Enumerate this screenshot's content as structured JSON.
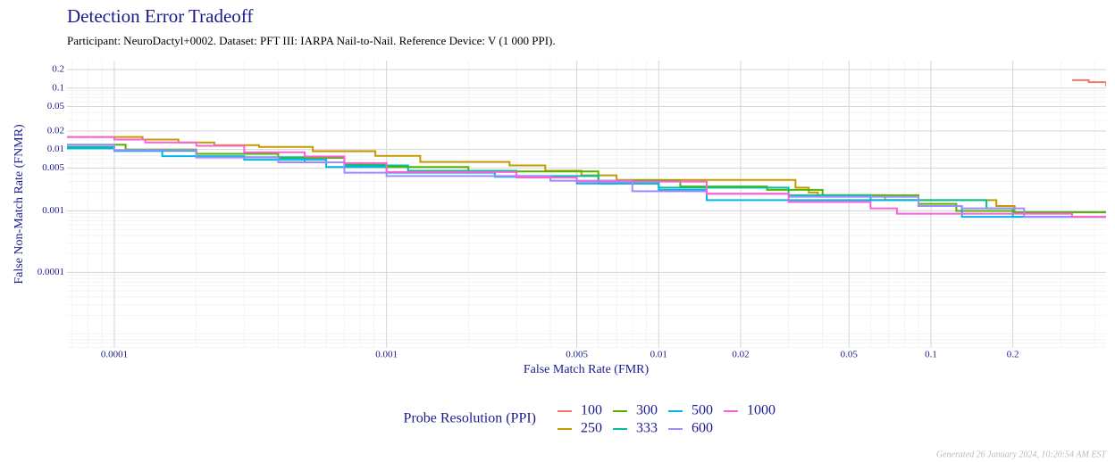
{
  "chart_data": {
    "type": "line",
    "step": true,
    "log_x": true,
    "log_y": true,
    "grid": true,
    "title": "Detection Error Tradeoff",
    "subtitle": "Participant: NeuroDactyl+0002. Dataset: PFT III: IARPA Nail-to-Nail. Reference Device: V (1 000 PPI).",
    "x_label": "False Match Rate (FMR)",
    "y_label": "False Non-Match Rate (FNMR)",
    "legend_title": "Probe Resolution (PPI)",
    "legend_position": "bottom",
    "footer": "Generated 26 January 2024, 10:20:54 AM EST",
    "xlim": [
      6.7e-05,
      0.44
    ],
    "ylim": [
      5.9e-06,
      0.28
    ],
    "xticks": [
      0.0001,
      0.001,
      0.005,
      0.01,
      0.02,
      0.05,
      0.1,
      0.2
    ],
    "yticks": [
      0.0001,
      0.001,
      0.005,
      0.01,
      0.02,
      0.05,
      0.1,
      0.2
    ],
    "series": [
      {
        "name": "100",
        "color": "#F8766D",
        "x": [
          0.33,
          0.38,
          0.44
        ],
        "values": [
          0.135,
          0.125,
          0.107
        ]
      },
      {
        "name": "250",
        "color": "#C49A00",
        "x": [
          6.7e-05,
          0.000127,
          0.000172,
          0.000233,
          0.00034,
          0.000536,
          0.00091,
          0.00133,
          0.00283,
          0.00383,
          0.0052,
          0.007,
          0.0318,
          0.0356,
          0.0384,
          0.0678,
          0.174,
          0.203,
          0.21
        ],
        "values": [
          0.016,
          0.0145,
          0.013,
          0.0118,
          0.011,
          0.0094,
          0.0079,
          0.0063,
          0.0055,
          0.0045,
          0.0038,
          0.0032,
          0.0024,
          0.002,
          0.0018,
          0.0015,
          0.0012,
          0.00095,
          0.00095
        ]
      },
      {
        "name": "300",
        "color": "#53B400",
        "x": [
          6.7e-05,
          0.00011,
          0.0002,
          0.0004,
          0.0007,
          0.001,
          0.002,
          0.006,
          0.012,
          0.025,
          0.04,
          0.09,
          0.124,
          0.2,
          0.44
        ],
        "values": [
          0.012,
          0.01,
          0.0085,
          0.0073,
          0.0058,
          0.0052,
          0.0044,
          0.0031,
          0.0025,
          0.0022,
          0.0018,
          0.0013,
          0.001,
          0.00095,
          0.00095
        ]
      },
      {
        "name": "333",
        "color": "#00C094",
        "x": [
          6.7e-05,
          0.0001,
          0.0002,
          0.0005,
          0.0007,
          0.0012,
          0.003,
          0.006,
          0.01,
          0.03,
          0.06,
          0.14,
          0.16,
          0.2,
          0.44
        ],
        "values": [
          0.011,
          0.0095,
          0.0075,
          0.0062,
          0.0055,
          0.0045,
          0.0037,
          0.0028,
          0.0024,
          0.0018,
          0.0015,
          0.0015,
          0.0011,
          0.0008,
          0.0008
        ]
      },
      {
        "name": "500",
        "color": "#00B6EB",
        "x": [
          6.7e-05,
          0.0001,
          0.00015,
          0.0003,
          0.0006,
          0.001,
          0.0025,
          0.005,
          0.01,
          0.015,
          0.09,
          0.13,
          0.44
        ],
        "values": [
          0.0105,
          0.0095,
          0.0078,
          0.0068,
          0.0052,
          0.0042,
          0.0036,
          0.0028,
          0.0022,
          0.0015,
          0.0012,
          0.0008,
          0.0008
        ]
      },
      {
        "name": "600",
        "color": "#A58AFF",
        "x": [
          6.7e-05,
          0.0001,
          0.0002,
          0.0004,
          0.0007,
          0.001,
          0.004,
          0.008,
          0.015,
          0.03,
          0.065,
          0.09,
          0.13,
          0.22,
          0.44
        ],
        "values": [
          0.012,
          0.0098,
          0.0074,
          0.0062,
          0.0042,
          0.0037,
          0.0031,
          0.0021,
          0.0019,
          0.0017,
          0.0017,
          0.0012,
          0.0011,
          0.0008,
          0.0008
        ]
      },
      {
        "name": "1000",
        "color": "#FB61D7",
        "x": [
          6.7e-05,
          0.0001,
          0.00013,
          0.0002,
          0.0003,
          0.0005,
          0.0007,
          0.001,
          0.003,
          0.005,
          0.015,
          0.03,
          0.06,
          0.075,
          0.33,
          0.44
        ],
        "values": [
          0.016,
          0.0145,
          0.013,
          0.0115,
          0.009,
          0.0077,
          0.006,
          0.0043,
          0.0035,
          0.003,
          0.0019,
          0.0014,
          0.0011,
          0.0009,
          0.0008,
          0.0008
        ]
      }
    ]
  }
}
